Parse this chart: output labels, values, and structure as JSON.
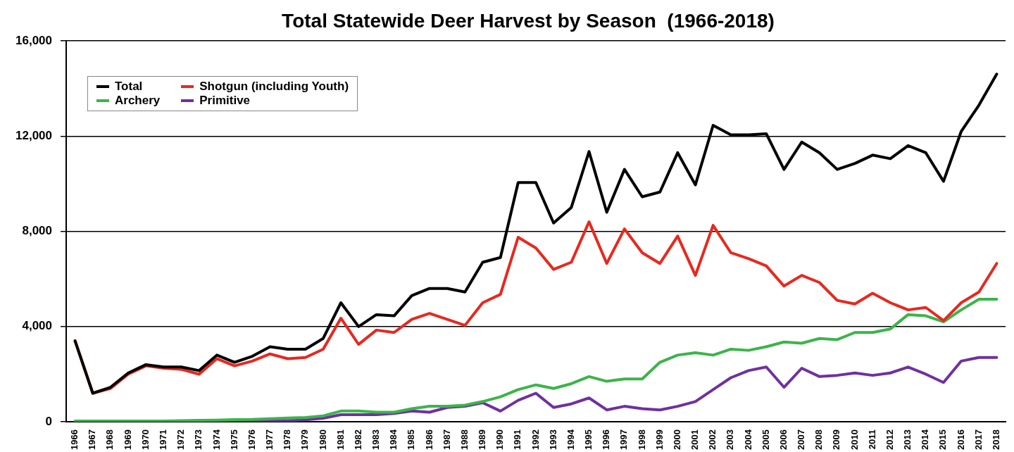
{
  "chart_data": {
    "type": "line",
    "title": "Total Statewide Deer Harvest by Season  (1966-2018)",
    "categories": [
      "1966",
      "1967",
      "1968",
      "1969",
      "1970",
      "1971",
      "1972",
      "1973",
      "1974",
      "1975",
      "1976",
      "1977",
      "1978",
      "1979",
      "1980",
      "1981",
      "1982",
      "1983",
      "1984",
      "1985",
      "1986",
      "1987",
      "1988",
      "1989",
      "1990",
      "1991",
      "1992",
      "1993",
      "1994",
      "1995",
      "1996",
      "1997",
      "1998",
      "1999",
      "2000",
      "2001",
      "2002",
      "2003",
      "2004",
      "2005",
      "2006",
      "2007",
      "2008",
      "2009",
      "2010",
      "2011",
      "2012",
      "2013",
      "2014",
      "2015",
      "2016",
      "2017",
      "2018"
    ],
    "series": [
      {
        "name": "Total",
        "color": "#000000",
        "values": [
          3400,
          1200,
          1450,
          2050,
          2400,
          2300,
          2300,
          2150,
          2800,
          2500,
          2750,
          3150,
          3050,
          3050,
          3500,
          5000,
          4000,
          4500,
          4450,
          5300,
          5600,
          5600,
          5450,
          6700,
          6900,
          10050,
          10050,
          8350,
          9000,
          11350,
          8800,
          10600,
          9450,
          9650,
          11300,
          9950,
          12450,
          12050,
          12050,
          12100,
          10600,
          11750,
          11300,
          10600,
          10850,
          11200,
          11050,
          11600,
          11300,
          10100,
          12200,
          13300,
          14600
        ]
      },
      {
        "name": "Shotgun (including Youth)",
        "color": "#e8281e",
        "values": [
          3400,
          1200,
          1400,
          2000,
          2350,
          2250,
          2200,
          2000,
          2650,
          2350,
          2550,
          2850,
          2650,
          2700,
          3050,
          4350,
          3250,
          3850,
          3750,
          4300,
          4550,
          4300,
          4050,
          5000,
          5350,
          7750,
          7300,
          6400,
          6700,
          8400,
          6650,
          8100,
          7100,
          6650,
          7800,
          6150,
          8250,
          7100,
          6850,
          6550,
          5700,
          6150,
          5850,
          5100,
          4950,
          5400,
          5000,
          4700,
          4800,
          4250,
          5000,
          5450,
          6650
        ]
      },
      {
        "name": "Archery",
        "color": "#3cb44a",
        "values": [
          30,
          30,
          30,
          30,
          30,
          30,
          50,
          60,
          70,
          90,
          100,
          130,
          160,
          180,
          250,
          450,
          450,
          400,
          400,
          550,
          650,
          650,
          700,
          850,
          1050,
          1350,
          1550,
          1400,
          1600,
          1900,
          1700,
          1800,
          1800,
          2500,
          2800,
          2900,
          2800,
          3050,
          3000,
          3150,
          3350,
          3300,
          3500,
          3450,
          3750,
          3750,
          3900,
          4500,
          4450,
          4200,
          4700,
          5150,
          5150
        ]
      },
      {
        "name": "Primitive",
        "color": "#7030a0",
        "values": [
          null,
          null,
          null,
          null,
          null,
          null,
          null,
          0,
          0,
          20,
          30,
          40,
          50,
          80,
          150,
          300,
          300,
          300,
          350,
          450,
          400,
          600,
          650,
          800,
          450,
          900,
          1200,
          600,
          750,
          1000,
          500,
          650,
          550,
          500,
          650,
          850,
          1350,
          1850,
          2150,
          2300,
          1450,
          2250,
          1900,
          1950,
          2050,
          1950,
          2050,
          2300,
          2000,
          1650,
          2550,
          2700,
          2700
        ]
      }
    ],
    "ylim": [
      0,
      16000
    ],
    "yticks": [
      {
        "value": 0,
        "label": "0"
      },
      {
        "value": 4000,
        "label": "4,000"
      },
      {
        "value": 8000,
        "label": "8,000"
      },
      {
        "value": 12000,
        "label": "12,000"
      },
      {
        "value": 16000,
        "label": "16,000"
      }
    ],
    "grid": "y",
    "legend": "top left",
    "marker": "none",
    "line_style": "solid"
  }
}
